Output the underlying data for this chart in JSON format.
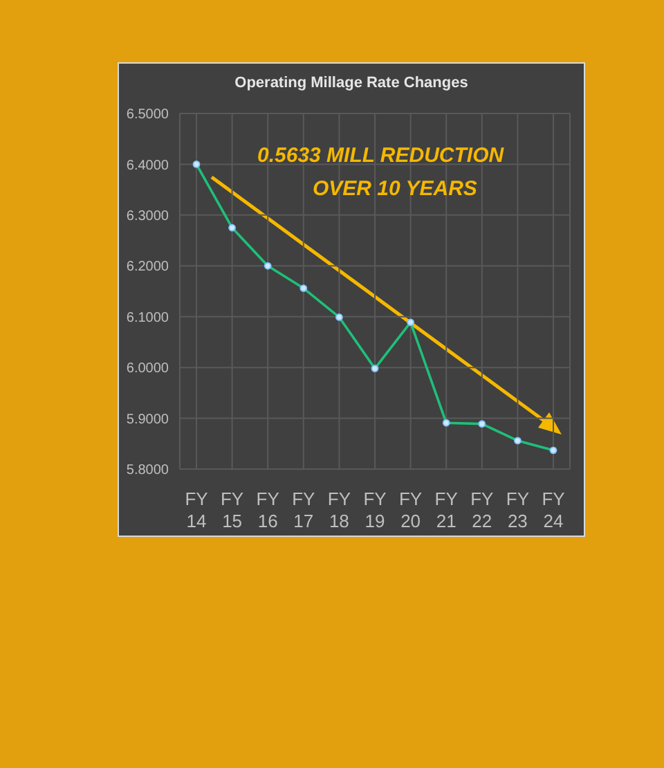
{
  "chart_data": {
    "type": "line",
    "title": "Operating Millage Rate Changes",
    "categories": [
      "FY 14",
      "FY 15",
      "FY 16",
      "FY 17",
      "FY 18",
      "FY 19",
      "FY 20",
      "FY 21",
      "FY 22",
      "FY 23",
      "FY 24"
    ],
    "series": [
      {
        "color": "#1fbf7a",
        "values": [
          6.4,
          6.275,
          6.2,
          6.156,
          6.099,
          5.998,
          6.089,
          5.891,
          5.889,
          5.856,
          5.837
        ]
      }
    ],
    "ylim": [
      5.8,
      6.5
    ],
    "yticks": [
      {
        "value": 5.8,
        "label": "5.8000"
      },
      {
        "value": 5.9,
        "label": "5.9000"
      },
      {
        "value": 6.0,
        "label": "6.0000"
      },
      {
        "value": 6.1,
        "label": "6.1000"
      },
      {
        "value": 6.2,
        "label": "6.2000"
      },
      {
        "value": 6.3,
        "label": "6.3000"
      },
      {
        "value": 6.4,
        "label": "6.4000"
      },
      {
        "value": 6.5,
        "label": "6.5000"
      }
    ],
    "grid": true,
    "marker": "circle",
    "line_style": "solid",
    "legend": false,
    "annotations": [
      "0.5633 MILL REDUCTION",
      "OVER 10 YEARS"
    ]
  }
}
